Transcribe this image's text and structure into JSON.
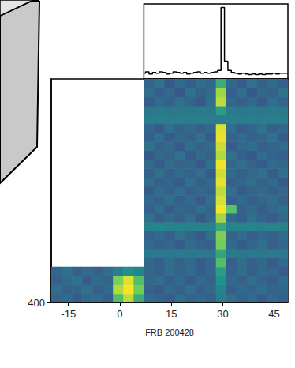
{
  "chart_data": {
    "type": "heatmap",
    "xlabel": "FRB 200428",
    "xlim": [
      -20,
      49
    ],
    "xticks": [
      -15,
      0,
      15,
      30,
      45
    ],
    "ylim": [
      400,
      800
    ],
    "yticks": [
      400
    ],
    "clim": [
      0,
      1
    ],
    "time_edges": [
      -20,
      -17,
      -14,
      -11,
      -8,
      -5,
      -2,
      1,
      4,
      7,
      10,
      13,
      16,
      19,
      22,
      25,
      28,
      31,
      34,
      37,
      40,
      43,
      46,
      49
    ],
    "freq_edges": [
      400,
      416,
      432,
      448,
      464,
      480,
      496,
      512,
      528,
      544,
      560,
      576,
      592,
      608,
      624,
      640,
      656,
      672,
      688,
      704,
      720,
      736,
      752,
      768,
      784,
      800
    ],
    "cells": [
      [
        0.32,
        0.35,
        0.29,
        0.34,
        0.36,
        0.3,
        0.7,
        0.9,
        0.62,
        0.35,
        0.32,
        0.29,
        0.36,
        0.31,
        0.34,
        0.3,
        0.42,
        0.36,
        0.31,
        0.35,
        0.29,
        0.34,
        0.3
      ],
      [
        0.36,
        0.31,
        0.33,
        0.37,
        0.3,
        0.35,
        0.88,
        0.99,
        0.78,
        0.31,
        0.29,
        0.35,
        0.31,
        0.36,
        0.3,
        0.34,
        0.45,
        0.3,
        0.35,
        0.32,
        0.36,
        0.31,
        0.33
      ],
      [
        0.3,
        0.34,
        0.37,
        0.29,
        0.35,
        0.32,
        0.8,
        0.95,
        0.7,
        0.33,
        0.36,
        0.3,
        0.34,
        0.29,
        0.35,
        0.31,
        0.5,
        0.34,
        0.3,
        0.36,
        0.32,
        0.29,
        0.35
      ],
      [
        0.33,
        0.37,
        0.3,
        0.35,
        0.31,
        0.36,
        0.42,
        0.5,
        0.45,
        0.34,
        0.3,
        0.36,
        0.32,
        0.35,
        0.29,
        0.34,
        0.55,
        0.31,
        0.36,
        0.3,
        0.35,
        0.33,
        0.29
      ],
      [
        null,
        null,
        null,
        null,
        null,
        null,
        null,
        null,
        null,
        0.34,
        0.3,
        0.36,
        0.31,
        0.35,
        0.29,
        0.33,
        0.7,
        0.3,
        0.36,
        0.31,
        0.34,
        0.29,
        0.35
      ],
      [
        null,
        null,
        null,
        null,
        null,
        null,
        null,
        null,
        null,
        0.4,
        0.41,
        0.4,
        0.41,
        0.4,
        0.41,
        0.4,
        0.58,
        0.41,
        0.4,
        0.41,
        0.4,
        0.41,
        0.4
      ],
      [
        null,
        null,
        null,
        null,
        null,
        null,
        null,
        null,
        null,
        0.35,
        0.3,
        0.34,
        0.29,
        0.36,
        0.32,
        0.3,
        0.78,
        0.35,
        0.29,
        0.33,
        0.36,
        0.3,
        0.34
      ],
      [
        null,
        null,
        null,
        null,
        null,
        null,
        null,
        null,
        null,
        0.31,
        0.35,
        0.3,
        0.37,
        0.33,
        0.29,
        0.36,
        0.8,
        0.32,
        0.36,
        0.3,
        0.34,
        0.31,
        0.35
      ],
      [
        null,
        null,
        null,
        null,
        null,
        null,
        null,
        null,
        null,
        0.44,
        0.45,
        0.44,
        0.45,
        0.44,
        0.45,
        0.44,
        0.6,
        0.45,
        0.44,
        0.45,
        0.44,
        0.45,
        0.44
      ],
      [
        null,
        null,
        null,
        null,
        null,
        null,
        null,
        null,
        null,
        0.37,
        0.3,
        0.35,
        0.31,
        0.36,
        0.28,
        0.34,
        0.86,
        0.35,
        0.3,
        0.37,
        0.32,
        0.29,
        0.35
      ],
      [
        null,
        null,
        null,
        null,
        null,
        null,
        null,
        null,
        null,
        0.3,
        0.36,
        0.29,
        0.34,
        0.31,
        0.37,
        0.33,
        0.99,
        0.72,
        0.31,
        0.35,
        0.29,
        0.34,
        0.37
      ],
      [
        null,
        null,
        null,
        null,
        null,
        null,
        null,
        null,
        null,
        0.34,
        0.31,
        0.37,
        0.3,
        0.35,
        0.29,
        0.36,
        0.94,
        0.31,
        0.35,
        0.3,
        0.33,
        0.36,
        0.31
      ],
      [
        null,
        null,
        null,
        null,
        null,
        null,
        null,
        null,
        null,
        0.29,
        0.35,
        0.31,
        0.36,
        0.3,
        0.34,
        0.32,
        0.9,
        0.36,
        0.29,
        0.33,
        0.35,
        0.3,
        0.34
      ],
      [
        null,
        null,
        null,
        null,
        null,
        null,
        null,
        null,
        null,
        0.36,
        0.3,
        0.33,
        0.29,
        0.37,
        0.31,
        0.34,
        0.96,
        0.3,
        0.33,
        0.36,
        0.31,
        0.35,
        0.28
      ],
      [
        null,
        null,
        null,
        null,
        null,
        null,
        null,
        null,
        null,
        0.31,
        0.37,
        0.3,
        0.35,
        0.32,
        0.36,
        0.29,
        0.93,
        0.35,
        0.3,
        0.34,
        0.37,
        0.29,
        0.36
      ],
      [
        null,
        null,
        null,
        null,
        null,
        null,
        null,
        null,
        null,
        0.35,
        0.29,
        0.36,
        0.31,
        0.34,
        0.28,
        0.37,
        0.98,
        0.33,
        0.36,
        0.31,
        0.29,
        0.35,
        0.33
      ],
      [
        null,
        null,
        null,
        null,
        null,
        null,
        null,
        null,
        null,
        0.28,
        0.34,
        0.32,
        0.38,
        0.29,
        0.35,
        0.31,
        0.88,
        0.37,
        0.31,
        0.28,
        0.36,
        0.32,
        0.3
      ],
      [
        null,
        null,
        null,
        null,
        null,
        null,
        null,
        null,
        null,
        0.37,
        0.31,
        0.35,
        0.28,
        0.36,
        0.32,
        0.35,
        0.92,
        0.29,
        0.34,
        0.36,
        0.3,
        0.33,
        0.35
      ],
      [
        null,
        null,
        null,
        null,
        null,
        null,
        null,
        null,
        null,
        0.3,
        0.36,
        0.29,
        0.34,
        0.31,
        0.37,
        0.28,
        0.97,
        0.32,
        0.35,
        0.3,
        0.33,
        0.37,
        0.29
      ],
      [
        null,
        null,
        null,
        null,
        null,
        null,
        null,
        null,
        null,
        0.33,
        0.28,
        0.37,
        0.31,
        0.35,
        0.3,
        0.34,
        0.95,
        0.36,
        0.29,
        0.33,
        0.38,
        0.3,
        0.34
      ],
      [
        null,
        null,
        null,
        null,
        null,
        null,
        null,
        null,
        null,
        0.42,
        0.42,
        0.42,
        0.42,
        0.42,
        0.42,
        0.42,
        0.42,
        0.42,
        0.42,
        0.42,
        0.42,
        0.42,
        0.42
      ],
      [
        null,
        null,
        null,
        null,
        null,
        null,
        null,
        null,
        null,
        0.4,
        0.41,
        0.4,
        0.41,
        0.4,
        0.41,
        0.4,
        0.55,
        0.41,
        0.4,
        0.41,
        0.4,
        0.41,
        0.4
      ],
      [
        null,
        null,
        null,
        null,
        null,
        null,
        null,
        null,
        null,
        0.29,
        0.35,
        0.31,
        0.37,
        0.33,
        0.28,
        0.36,
        0.9,
        0.33,
        0.3,
        0.35,
        0.29,
        0.36,
        0.32
      ],
      [
        null,
        null,
        null,
        null,
        null,
        null,
        null,
        null,
        null,
        0.36,
        0.3,
        0.34,
        0.27,
        0.38,
        0.31,
        0.35,
        0.85,
        0.3,
        0.36,
        0.28,
        0.34,
        0.31,
        0.37
      ],
      [
        null,
        null,
        null,
        null,
        null,
        null,
        null,
        null,
        null,
        0.32,
        0.38,
        0.28,
        0.35,
        0.3,
        0.36,
        0.33,
        0.62,
        0.34,
        0.29,
        0.37,
        0.31,
        0.35,
        0.3
      ]
    ],
    "profile": {
      "type": "line",
      "color": "#000000",
      "tick_labels": false,
      "xlim": [
        7,
        49
      ],
      "ylim": [
        0,
        1.05
      ],
      "x": [
        7,
        8,
        9,
        10,
        11,
        12,
        13,
        14,
        15,
        16,
        17,
        18,
        19,
        20,
        21,
        22,
        23,
        24,
        25,
        26,
        27,
        28,
        29,
        30,
        31,
        32,
        33,
        34,
        35,
        36,
        37,
        38,
        39,
        40,
        41,
        42,
        43,
        44,
        45,
        46,
        47,
        48,
        49
      ],
      "values": [
        0.08,
        0.1,
        0.07,
        0.09,
        0.08,
        0.1,
        0.09,
        0.07,
        0.08,
        0.1,
        0.09,
        0.08,
        0.09,
        0.07,
        0.08,
        0.09,
        0.1,
        0.08,
        0.09,
        0.08,
        0.09,
        0.1,
        0.12,
        1.0,
        0.25,
        0.12,
        0.09,
        0.08,
        0.07,
        0.08,
        0.07,
        0.06,
        0.07,
        0.06,
        0.07,
        0.06,
        0.07,
        0.07,
        0.08,
        0.07,
        0.08,
        0.08,
        0.08
      ]
    }
  }
}
